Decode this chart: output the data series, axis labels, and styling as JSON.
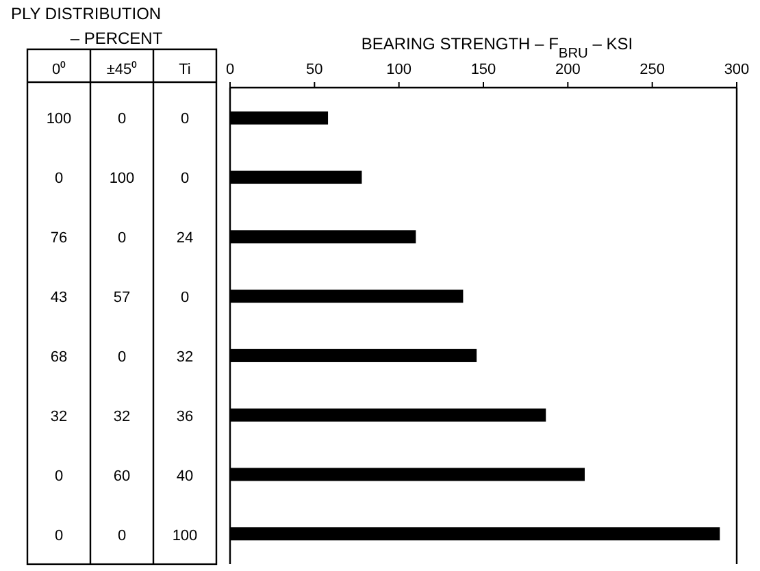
{
  "chart_data": [
    {
      "type": "other",
      "title": "PLY DISTRIBUTION – PERCENT",
      "categories": [
        "0⁰",
        "±45⁰",
        "Ti"
      ],
      "cell_labels": [
        [
          "100",
          "0",
          "0"
        ],
        [
          "0",
          "100",
          "0"
        ],
        [
          "76",
          "0",
          "24"
        ],
        [
          "43",
          "57",
          "0"
        ],
        [
          "68",
          "0",
          "32"
        ],
        [
          "32",
          "32",
          "36"
        ],
        [
          "0",
          "60",
          "40"
        ],
        [
          "0",
          "0",
          "100"
        ]
      ]
    },
    {
      "type": "bar",
      "orientation": "horizontal",
      "xlabel": "BEARING STRENGTH – F$_{BRU}$ – KSI",
      "categories": [
        null,
        null,
        null,
        null,
        null,
        null,
        null,
        null
      ],
      "values": [
        58,
        78,
        110,
        138,
        146,
        187,
        210,
        290
      ],
      "color": "#000000",
      "xlim": [
        0,
        300
      ],
      "xticks": [
        0,
        50,
        100,
        150,
        200,
        250,
        300
      ]
    }
  ]
}
